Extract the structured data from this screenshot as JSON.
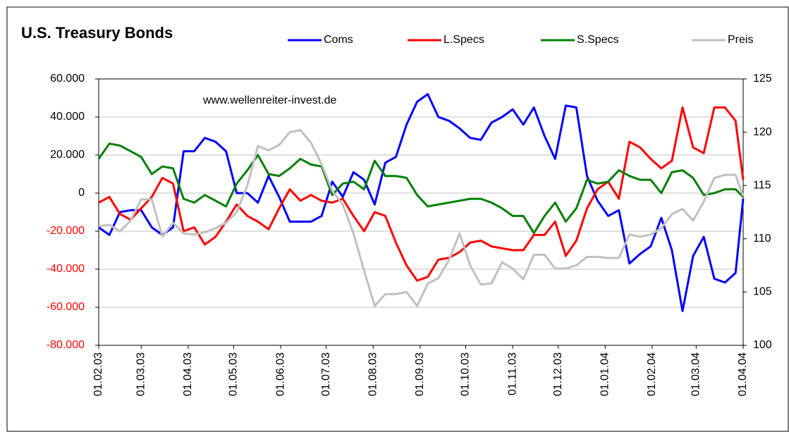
{
  "chart_data": {
    "type": "line",
    "title": "U.S. Treasury Bonds",
    "annotation": "www.wellenreiter-invest.de",
    "x": [
      0,
      7,
      14,
      21,
      28,
      35,
      42,
      49,
      56,
      63,
      70,
      77,
      84,
      91,
      98,
      105,
      112,
      119,
      126,
      133,
      140,
      147,
      154,
      161,
      168,
      175,
      182,
      189,
      196,
      203,
      210,
      217,
      224,
      231,
      238,
      245,
      252,
      259,
      266,
      273,
      280,
      287,
      294,
      301,
      308,
      315,
      322,
      329,
      336,
      343,
      350,
      357,
      364,
      371,
      378,
      385,
      392,
      399,
      406,
      413,
      420,
      425
    ],
    "xlim": [
      0,
      425
    ],
    "xticks": [
      {
        "value": 0,
        "label": "01.02.03"
      },
      {
        "value": 28,
        "label": "01.03.03"
      },
      {
        "value": 59,
        "label": "01.04.03"
      },
      {
        "value": 89,
        "label": "01.05.03"
      },
      {
        "value": 120,
        "label": "01.06.03"
      },
      {
        "value": 150,
        "label": "01.07.03"
      },
      {
        "value": 181,
        "label": "01.08.03"
      },
      {
        "value": 212,
        "label": "01.09.03"
      },
      {
        "value": 242,
        "label": "01.10.03"
      },
      {
        "value": 273,
        "label": "01.11.03"
      },
      {
        "value": 303,
        "label": "01.12.03"
      },
      {
        "value": 334,
        "label": "01.01.04"
      },
      {
        "value": 365,
        "label": "01.02.04"
      },
      {
        "value": 394,
        "label": "01.03.04"
      },
      {
        "value": 425,
        "label": "01.04.04"
      }
    ],
    "ylim": [
      -80000,
      60000
    ],
    "yticks": [
      {
        "value": -80000,
        "label": "-80.000"
      },
      {
        "value": -60000,
        "label": "-60.000"
      },
      {
        "value": -40000,
        "label": "-40.000"
      },
      {
        "value": -20000,
        "label": "-20.000"
      },
      0,
      {
        "value": 20000,
        "label": "20.000"
      },
      {
        "value": 40000,
        "label": "40.000"
      },
      {
        "value": 60000,
        "label": "60.000"
      }
    ],
    "y2lim": [
      100,
      125
    ],
    "y2ticks": [
      100,
      105,
      110,
      115,
      120,
      125
    ],
    "grid": true,
    "series": [
      {
        "name": "Coms",
        "color": "#0000ff",
        "values": [
          -18000,
          -22000,
          -10000,
          -9000,
          -9000,
          -18000,
          -22000,
          -18000,
          22000,
          22000,
          29000,
          27000,
          22000,
          0,
          0,
          -5000,
          9000,
          -2000,
          -15000,
          -15000,
          -15000,
          -12000,
          6000,
          -2000,
          11000,
          7000,
          -6000,
          16000,
          19000,
          36000,
          48000,
          52000,
          40000,
          38000,
          34000,
          29000,
          28000,
          37000,
          40000,
          44000,
          36000,
          45000,
          30000,
          18000,
          46000,
          45000,
          9000,
          -4000,
          -12000,
          -9000,
          -37000,
          -32000,
          -28000,
          -13000,
          -30000,
          -62000,
          -33000,
          -23000,
          -45000,
          -47000,
          -42000,
          -3000
        ]
      },
      {
        "name": "L.Specs",
        "color": "#ff0000",
        "values": [
          -5000,
          -2000,
          -11000,
          -14000,
          -8000,
          -2000,
          8000,
          5000,
          -20000,
          -18000,
          -27000,
          -23000,
          -15000,
          -6000,
          -12000,
          -15000,
          -19000,
          -8000,
          2000,
          -4000,
          -1000,
          -4000,
          -5000,
          -3000,
          -12000,
          -20000,
          -10000,
          -12000,
          -26000,
          -38000,
          -46000,
          -44000,
          -35000,
          -34000,
          -31000,
          -26000,
          -25000,
          -28000,
          -29000,
          -30000,
          -30000,
          -22000,
          -22000,
          -15000,
          -33000,
          -25000,
          -8000,
          2000,
          6000,
          -3000,
          27000,
          24000,
          18000,
          13000,
          17000,
          45000,
          24000,
          21000,
          45000,
          45000,
          38000,
          7000
        ]
      },
      {
        "name": "S.Specs",
        "color": "#008000",
        "values": [
          18000,
          26000,
          25000,
          22000,
          19000,
          10000,
          14000,
          13000,
          -3000,
          -5000,
          -1000,
          -4000,
          -7000,
          5000,
          12000,
          20000,
          10000,
          9000,
          13000,
          18000,
          15000,
          14000,
          -1000,
          5000,
          6000,
          2000,
          17000,
          9000,
          9000,
          8000,
          -1000,
          -7000,
          -6000,
          -5000,
          -4000,
          -3000,
          -3000,
          -5000,
          -8000,
          -12000,
          -12000,
          -21000,
          -12000,
          -5000,
          -15000,
          -8000,
          7000,
          5000,
          6000,
          12000,
          9000,
          7000,
          7000,
          0,
          11000,
          12000,
          8000,
          -1000,
          0,
          2000,
          2000,
          -2000
        ]
      },
      {
        "name": "Preis",
        "color": "#c0c0c0",
        "axis": "y2",
        "values": [
          111.2,
          111.3,
          110.7,
          111.7,
          113.7,
          113.7,
          110.2,
          111.5,
          110.5,
          110.4,
          110.6,
          111,
          111.5,
          112.5,
          115,
          118.7,
          118.3,
          118.8,
          120,
          120.2,
          119,
          117,
          114.5,
          113.2,
          110.5,
          107,
          103.7,
          104.8,
          104.8,
          105,
          103.7,
          105.8,
          106.3,
          108,
          110.5,
          107.5,
          105.7,
          105.8,
          107.8,
          107.2,
          106.2,
          108.5,
          108.5,
          107.2,
          107.2,
          107.5,
          108.3,
          108.3,
          108.2,
          108.2,
          110.4,
          110.2,
          110.4,
          111,
          112.3,
          112.8,
          111.7,
          113.5,
          115.7,
          116,
          116,
          114
        ]
      }
    ]
  }
}
